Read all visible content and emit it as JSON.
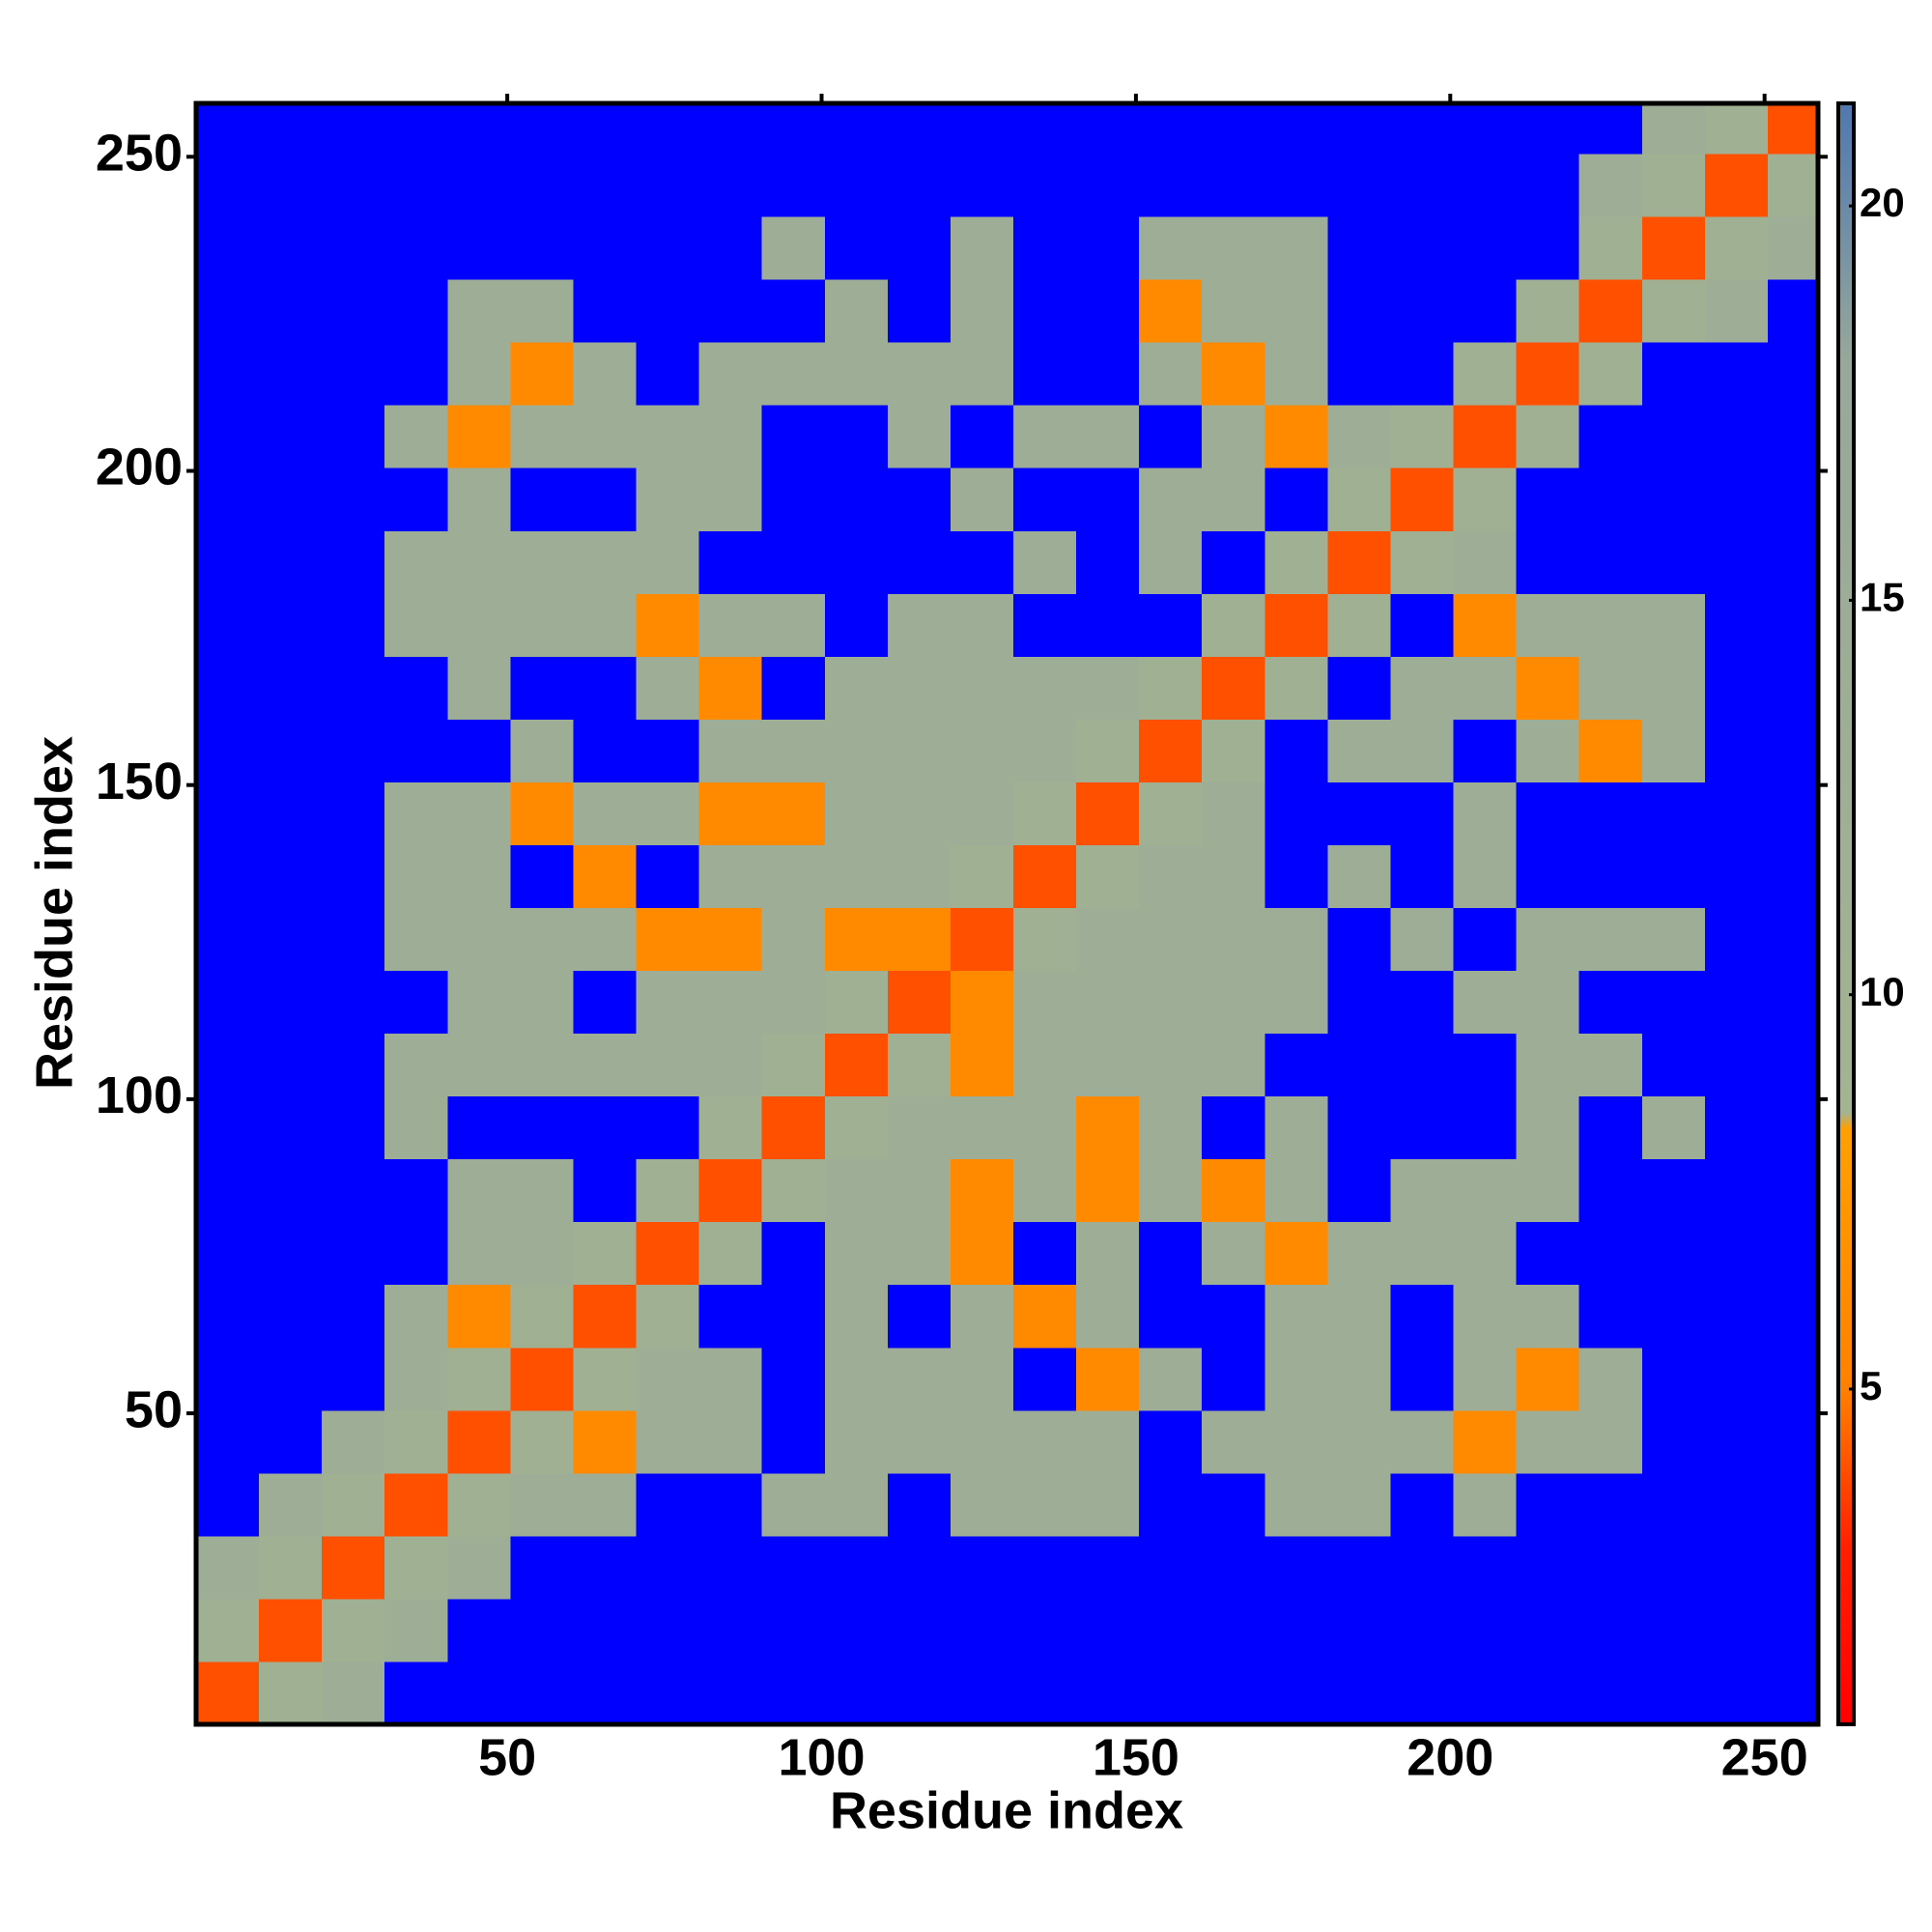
{
  "chart_data": {
    "type": "heatmap",
    "x_label": "Residue index",
    "y_label": "Residue index",
    "bins": [
      0.5,
      10.5,
      20.5,
      30.5,
      40.5,
      50.5,
      60.5,
      70.5,
      80.5,
      90.5,
      100.5,
      110.5,
      120.5,
      130.5,
      140.5,
      150.5,
      160.5,
      170.5,
      180.5,
      190.5,
      200.5,
      210.5,
      220.5,
      230.5,
      240.5,
      250.5,
      258.5
    ],
    "xlim": [
      0.5,
      258.5
    ],
    "ylim": [
      0.5,
      258.5
    ],
    "xticks": [
      50,
      100,
      150,
      200,
      250
    ],
    "yticks": [
      50,
      100,
      150,
      200,
      250
    ],
    "zlim": [
      0.75,
      21.3
    ],
    "zticks": [
      5,
      10,
      15,
      20
    ],
    "over_color": "#0000ff",
    "colorscale": [
      [
        0.75,
        "#ff0000"
      ],
      [
        3,
        "#ff2000"
      ],
      [
        5,
        "#ff8000"
      ],
      [
        8.3,
        "#ffa000"
      ],
      [
        8.5,
        "#a3b491"
      ],
      [
        18,
        "#98a89a"
      ],
      [
        20,
        "#6a8aa8"
      ],
      [
        21.3,
        "#5078b0"
      ]
    ],
    "z": [
      [
        4,
        11,
        14,
        22,
        22,
        22,
        22,
        22,
        22,
        22,
        22,
        22,
        22,
        22,
        22,
        22,
        22,
        22,
        22,
        22,
        22,
        22,
        22,
        22,
        22,
        22
      ],
      [
        11,
        4,
        11,
        14,
        22,
        22,
        22,
        22,
        22,
        22,
        22,
        22,
        22,
        22,
        22,
        22,
        22,
        22,
        22,
        22,
        22,
        22,
        22,
        22,
        22,
        22
      ],
      [
        14,
        11,
        4,
        11,
        14,
        22,
        22,
        22,
        22,
        22,
        22,
        22,
        22,
        22,
        22,
        22,
        22,
        22,
        22,
        22,
        22,
        22,
        22,
        22,
        22,
        22
      ],
      [
        22,
        14,
        11,
        4,
        11,
        14,
        14,
        22,
        22,
        14,
        14,
        22,
        14,
        14,
        14,
        22,
        22,
        14,
        14,
        22,
        14,
        22,
        22,
        22,
        22,
        22
      ],
      [
        22,
        22,
        14,
        11,
        4,
        11,
        6,
        14,
        14,
        22,
        14,
        14,
        14,
        14,
        14,
        22,
        14,
        14,
        14,
        14,
        6,
        14,
        14,
        22,
        22,
        22
      ],
      [
        22,
        22,
        22,
        14,
        11,
        4,
        11,
        14,
        14,
        22,
        14,
        14,
        14,
        22,
        6,
        14,
        22,
        14,
        14,
        22,
        14,
        6,
        14,
        22,
        22,
        22
      ],
      [
        22,
        22,
        22,
        14,
        6,
        11,
        4,
        11,
        22,
        22,
        14,
        22,
        14,
        6,
        14,
        22,
        22,
        14,
        14,
        22,
        14,
        14,
        22,
        22,
        22,
        22
      ],
      [
        22,
        22,
        22,
        22,
        14,
        14,
        11,
        4,
        11,
        22,
        14,
        14,
        6,
        22,
        14,
        22,
        14,
        6,
        14,
        14,
        14,
        22,
        22,
        22,
        22,
        22
      ],
      [
        22,
        22,
        22,
        22,
        14,
        14,
        22,
        11,
        4,
        11,
        14,
        14,
        6,
        14,
        6,
        14,
        6,
        14,
        22,
        14,
        14,
        14,
        22,
        22,
        22,
        22
      ],
      [
        22,
        22,
        22,
        14,
        22,
        22,
        22,
        22,
        11,
        4,
        11,
        14,
        14,
        14,
        6,
        14,
        22,
        14,
        22,
        22,
        22,
        14,
        22,
        14,
        22,
        22
      ],
      [
        22,
        22,
        22,
        14,
        14,
        14,
        14,
        14,
        14,
        11,
        4,
        11,
        6,
        14,
        14,
        14,
        14,
        22,
        22,
        22,
        22,
        14,
        14,
        22,
        22,
        22
      ],
      [
        22,
        22,
        22,
        22,
        14,
        14,
        22,
        14,
        14,
        14,
        11,
        4,
        6,
        14,
        14,
        14,
        14,
        14,
        22,
        22,
        14,
        14,
        22,
        22,
        22,
        22
      ],
      [
        22,
        22,
        22,
        14,
        14,
        14,
        14,
        6,
        6,
        14,
        6,
        6,
        4,
        11,
        14,
        14,
        14,
        14,
        22,
        14,
        22,
        14,
        14,
        14,
        22,
        22
      ],
      [
        22,
        22,
        22,
        14,
        14,
        22,
        6,
        22,
        14,
        14,
        14,
        14,
        11,
        4,
        11,
        14,
        14,
        22,
        14,
        22,
        14,
        22,
        22,
        22,
        22,
        22
      ],
      [
        22,
        22,
        22,
        14,
        14,
        6,
        14,
        14,
        6,
        6,
        14,
        14,
        14,
        11,
        4,
        11,
        14,
        22,
        22,
        22,
        14,
        22,
        22,
        22,
        22,
        22
      ],
      [
        22,
        22,
        22,
        22,
        22,
        14,
        22,
        22,
        14,
        14,
        14,
        14,
        14,
        14,
        11,
        4,
        11,
        22,
        14,
        14,
        22,
        14,
        6,
        14,
        22,
        22
      ],
      [
        22,
        22,
        22,
        22,
        14,
        22,
        22,
        14,
        6,
        22,
        14,
        14,
        14,
        14,
        14,
        11,
        4,
        11,
        22,
        14,
        14,
        6,
        14,
        14,
        22,
        22
      ],
      [
        22,
        22,
        22,
        14,
        14,
        14,
        14,
        6,
        14,
        14,
        22,
        14,
        14,
        22,
        22,
        22,
        11,
        4,
        11,
        22,
        6,
        14,
        14,
        14,
        22,
        22
      ],
      [
        22,
        22,
        22,
        14,
        14,
        14,
        14,
        14,
        22,
        22,
        22,
        22,
        22,
        14,
        22,
        14,
        22,
        11,
        4,
        11,
        14,
        22,
        22,
        22,
        22,
        22
      ],
      [
        22,
        22,
        22,
        22,
        14,
        22,
        22,
        14,
        14,
        22,
        22,
        22,
        14,
        22,
        22,
        14,
        14,
        22,
        11,
        4,
        11,
        22,
        22,
        22,
        22,
        22
      ],
      [
        22,
        22,
        22,
        14,
        6,
        14,
        14,
        14,
        14,
        22,
        22,
        14,
        22,
        14,
        14,
        22,
        14,
        6,
        14,
        11,
        4,
        11,
        22,
        22,
        22,
        22
      ],
      [
        22,
        22,
        22,
        22,
        14,
        6,
        14,
        22,
        14,
        14,
        14,
        14,
        14,
        22,
        22,
        14,
        6,
        14,
        22,
        22,
        11,
        4,
        11,
        22,
        22,
        22
      ],
      [
        22,
        22,
        22,
        22,
        14,
        14,
        22,
        22,
        22,
        22,
        14,
        22,
        14,
        22,
        22,
        6,
        14,
        14,
        22,
        22,
        22,
        11,
        4,
        11,
        14,
        22
      ],
      [
        22,
        22,
        22,
        22,
        22,
        22,
        22,
        22,
        22,
        14,
        22,
        22,
        14,
        22,
        22,
        14,
        14,
        14,
        22,
        22,
        22,
        22,
        11,
        4,
        11,
        14
      ],
      [
        22,
        22,
        22,
        22,
        22,
        22,
        22,
        22,
        22,
        22,
        22,
        22,
        22,
        22,
        22,
        22,
        22,
        22,
        22,
        22,
        22,
        22,
        14,
        11,
        4,
        11
      ],
      [
        22,
        22,
        22,
        22,
        22,
        22,
        22,
        22,
        22,
        22,
        22,
        22,
        22,
        22,
        22,
        22,
        22,
        22,
        22,
        22,
        22,
        22,
        22,
        14,
        11,
        4
      ]
    ]
  }
}
